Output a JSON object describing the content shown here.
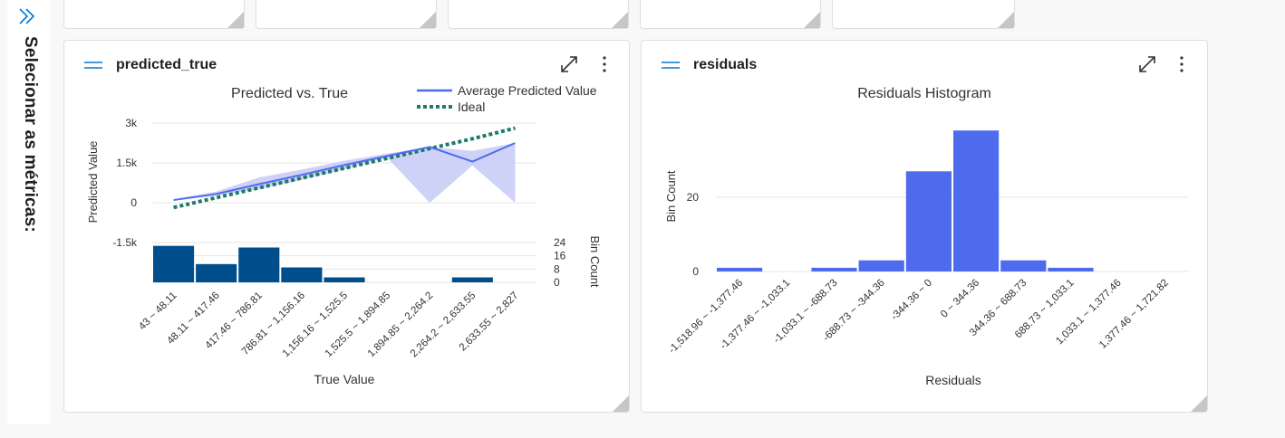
{
  "side_panel": {
    "label": "Selecionar as métricas:",
    "expand_icon": "double-chevron-right-icon"
  },
  "colors": {
    "avg_line": "#4f6bed",
    "ideal": "#1e7a6a",
    "band": "#c5caf6",
    "bins_left": "#004e8c",
    "bins_right": "#4f6bed",
    "grid": "#e6e6e6"
  },
  "cards": [
    {
      "title": "predicted_true",
      "drag_icon": "drag-handle-icon",
      "maximize_icon": "maximize-icon",
      "more_icon": "more-vertical-icon"
    },
    {
      "title": "residuals",
      "drag_icon": "drag-handle-icon",
      "maximize_icon": "maximize-icon",
      "more_icon": "more-vertical-icon"
    }
  ],
  "chart_data": [
    {
      "type": "line",
      "title": "Predicted vs. True",
      "xlabel": "True Value",
      "ylabel": "Predicted Value",
      "y2label": "Bin Count",
      "legend_placement": "top-right",
      "legend": [
        "Average Predicted Value",
        "Ideal"
      ],
      "categories": [
        "43 ~ 48.11",
        "48.11 ~ 417.46",
        "417.46 ~ 786.81",
        "786.81 ~ 1,156.16",
        "1,156.16 ~ 1,525.5",
        "1,525.5 ~ 1,894.85",
        "1,894.85 ~ 2,264.2",
        "2,264.2 ~ 2,633.55",
        "2,633.55 ~ 2,827"
      ],
      "ylim": [
        -2800,
        3000
      ],
      "yticks": [
        3000,
        1500,
        0,
        -1500
      ],
      "ytick_labels": [
        "3k",
        "1.5k",
        "0",
        "-1.5k"
      ],
      "series": [
        {
          "name": "Average Predicted Value",
          "values": [
            100,
            330,
            700,
            1050,
            1420,
            1760,
            2100,
            1550,
            2250
          ],
          "upper": [
            130,
            420,
            950,
            1250,
            1580,
            1850,
            2100,
            1950,
            2250
          ],
          "lower": [
            80,
            260,
            520,
            860,
            1260,
            1700,
            0,
            1400,
            0
          ]
        },
        {
          "name": "Ideal",
          "values": [
            -180,
            190,
            560,
            930,
            1300,
            1670,
            2040,
            2410,
            2810
          ]
        }
      ],
      "bin_counts": [
        22,
        11,
        21,
        9,
        3,
        0,
        0,
        3,
        0
      ],
      "bin_ylim": [
        0,
        24
      ],
      "bin_yticks": [
        24,
        16,
        8,
        0
      ],
      "grid": true
    },
    {
      "type": "bar",
      "title": "Residuals Histogram",
      "xlabel": "Residuals",
      "ylabel": "Bin Count",
      "categories": [
        "-1,518.96 ~ -1,377.46",
        "-1,377.46 ~ -1,033.1",
        "-1,033.1 ~ -688.73",
        "-688.73 ~ -344.36",
        "-344.36 ~ 0",
        "0 ~ 344.36",
        "344.36 ~ 688.73",
        "688.73 ~ 1,033.1",
        "1,033.1 ~ 1,377.46",
        "1,377.46 ~ 1,721.82"
      ],
      "values": [
        1,
        0,
        1,
        3,
        27,
        38,
        3,
        1,
        0,
        0
      ],
      "ylim": [
        0,
        40
      ],
      "yticks": [
        20,
        0
      ],
      "grid": true
    }
  ]
}
